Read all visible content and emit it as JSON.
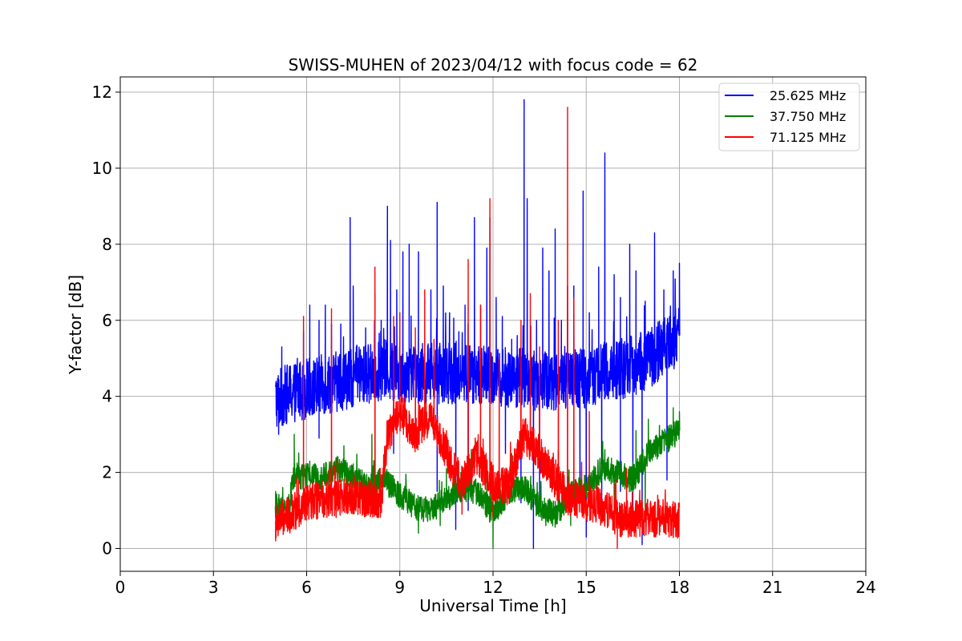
{
  "chart_data": {
    "type": "line",
    "title": "SWISS-MUHEN of 2023/04/12 with focus code = 62",
    "xlabel": "Universal Time [h]",
    "ylabel": "Y-factor [dB]",
    "xlim": [
      0,
      24
    ],
    "ylim": [
      -0.6,
      12.4
    ],
    "xticks": [
      0,
      3,
      6,
      9,
      12,
      15,
      18,
      21,
      24
    ],
    "xtick_labels": [
      "0",
      "3",
      "6",
      "9",
      "12",
      "15",
      "18",
      "21",
      "24"
    ],
    "yticks": [
      0,
      2,
      4,
      6,
      8,
      10,
      12
    ],
    "ytick_labels": [
      "0",
      "2",
      "4",
      "6",
      "8",
      "10",
      "12"
    ],
    "grid": true,
    "legend_position": "top-right",
    "series": [
      {
        "name": "25.625 MHz",
        "color": "#0000ff",
        "base": [
          [
            5.0,
            3.9
          ],
          [
            5.5,
            4.1
          ],
          [
            6.0,
            4.2
          ],
          [
            6.5,
            4.3
          ],
          [
            7.0,
            4.4
          ],
          [
            7.5,
            4.5
          ],
          [
            8.0,
            4.6
          ],
          [
            8.5,
            4.7
          ],
          [
            9.0,
            4.6
          ],
          [
            9.5,
            4.6
          ],
          [
            10.0,
            4.6
          ],
          [
            10.5,
            4.6
          ],
          [
            11.0,
            4.6
          ],
          [
            11.5,
            4.6
          ],
          [
            12.0,
            4.5
          ],
          [
            12.5,
            4.5
          ],
          [
            13.0,
            4.5
          ],
          [
            13.5,
            4.4
          ],
          [
            14.0,
            4.4
          ],
          [
            14.5,
            4.4
          ],
          [
            15.0,
            4.5
          ],
          [
            15.5,
            4.6
          ],
          [
            16.0,
            4.7
          ],
          [
            16.5,
            4.8
          ],
          [
            17.0,
            5.0
          ],
          [
            17.5,
            5.3
          ],
          [
            18.0,
            5.6
          ]
        ],
        "amplitude": 0.8,
        "peaks": [
          [
            5.2,
            5.3
          ],
          [
            5.7,
            5.0
          ],
          [
            5.9,
            5.7
          ],
          [
            6.1,
            6.4
          ],
          [
            6.4,
            6.0
          ],
          [
            6.6,
            6.4
          ],
          [
            6.8,
            5.9
          ],
          [
            7.1,
            5.9
          ],
          [
            7.4,
            8.7
          ],
          [
            7.5,
            6.9
          ],
          [
            7.9,
            5.8
          ],
          [
            8.2,
            6.7
          ],
          [
            8.4,
            6.0
          ],
          [
            8.6,
            9.0
          ],
          [
            8.7,
            8.1
          ],
          [
            8.9,
            6.8
          ],
          [
            9.1,
            7.8
          ],
          [
            9.3,
            8.0
          ],
          [
            9.6,
            7.8
          ],
          [
            9.8,
            5.2
          ],
          [
            10.0,
            6.8
          ],
          [
            10.2,
            9.1
          ],
          [
            10.4,
            6.9
          ],
          [
            10.6,
            6.2
          ],
          [
            10.9,
            5.7
          ],
          [
            11.1,
            6.4
          ],
          [
            11.4,
            8.7
          ],
          [
            11.6,
            6.4
          ],
          [
            11.8,
            7.9
          ],
          [
            11.9,
            8.7
          ],
          [
            12.1,
            6.6
          ],
          [
            12.3,
            6.1
          ],
          [
            12.6,
            5.5
          ],
          [
            13.0,
            11.8
          ],
          [
            13.1,
            9.2
          ],
          [
            13.4,
            6.0
          ],
          [
            13.6,
            7.9
          ],
          [
            13.8,
            7.3
          ],
          [
            14.0,
            8.4
          ],
          [
            14.2,
            6.0
          ],
          [
            14.4,
            6.9
          ],
          [
            14.6,
            6.9
          ],
          [
            14.9,
            9.4
          ],
          [
            15.1,
            6.2
          ],
          [
            15.4,
            7.4
          ],
          [
            15.6,
            10.4
          ],
          [
            15.9,
            7.2
          ],
          [
            16.1,
            6.6
          ],
          [
            16.4,
            8.0
          ],
          [
            16.6,
            7.3
          ],
          [
            16.9,
            6.5
          ],
          [
            17.2,
            8.3
          ],
          [
            17.5,
            6.8
          ],
          [
            17.8,
            7.3
          ],
          [
            18.0,
            7.5
          ]
        ],
        "dips": [
          [
            5.1,
            3.0
          ],
          [
            6.4,
            2.9
          ],
          [
            8.8,
            2.5
          ],
          [
            10.2,
            1.5
          ],
          [
            10.8,
            0.5
          ],
          [
            11.2,
            1.0
          ],
          [
            12.4,
            2.5
          ],
          [
            12.9,
            1.2
          ],
          [
            13.3,
            0.0
          ],
          [
            13.5,
            1.3
          ],
          [
            14.8,
            1.2
          ],
          [
            15.0,
            0.3
          ],
          [
            15.5,
            1.0
          ],
          [
            16.1,
            1.5
          ],
          [
            16.5,
            1.0
          ],
          [
            16.8,
            0.1
          ],
          [
            17.6,
            1.8
          ]
        ]
      },
      {
        "name": "37.750 MHz",
        "color": "#008000",
        "base": [
          [
            5.0,
            1.1
          ],
          [
            5.4,
            1.0
          ],
          [
            5.6,
            1.9
          ],
          [
            6.0,
            1.9
          ],
          [
            6.5,
            1.9
          ],
          [
            7.0,
            2.1
          ],
          [
            7.5,
            1.9
          ],
          [
            8.0,
            1.6
          ],
          [
            8.3,
            1.8
          ],
          [
            8.5,
            1.8
          ],
          [
            9.0,
            1.4
          ],
          [
            9.5,
            1.1
          ],
          [
            10.0,
            1.0
          ],
          [
            10.5,
            1.3
          ],
          [
            11.0,
            1.6
          ],
          [
            11.5,
            1.5
          ],
          [
            12.0,
            0.9
          ],
          [
            12.5,
            1.5
          ],
          [
            13.0,
            1.6
          ],
          [
            13.5,
            1.1
          ],
          [
            14.0,
            0.9
          ],
          [
            14.5,
            1.4
          ],
          [
            15.0,
            1.6
          ],
          [
            15.5,
            2.1
          ],
          [
            16.0,
            2.0
          ],
          [
            16.5,
            1.8
          ],
          [
            17.0,
            2.5
          ],
          [
            17.5,
            2.8
          ],
          [
            18.0,
            3.1
          ]
        ],
        "amplitude": 0.35,
        "peaks": [
          [
            5.0,
            1.5
          ],
          [
            5.6,
            3.0
          ],
          [
            6.1,
            2.3
          ],
          [
            7.2,
            2.7
          ],
          [
            8.1,
            3.0
          ],
          [
            10.5,
            2.1
          ],
          [
            11.3,
            2.6
          ],
          [
            11.8,
            2.3
          ],
          [
            12.6,
            2.5
          ],
          [
            14.1,
            2.6
          ],
          [
            15.6,
            2.6
          ],
          [
            16.6,
            3.1
          ],
          [
            17.0,
            3.4
          ],
          [
            17.8,
            3.7
          ],
          [
            18.0,
            3.6
          ]
        ],
        "dips": [
          [
            5.0,
            0.9
          ],
          [
            9.6,
            0.4
          ],
          [
            10.3,
            0.6
          ],
          [
            12.0,
            0.0
          ],
          [
            13.7,
            0.6
          ],
          [
            14.5,
            0.6
          ],
          [
            15.9,
            0.7
          ],
          [
            16.9,
            0.8
          ]
        ]
      },
      {
        "name": "71.125 MHz",
        "color": "#ff0000",
        "base": [
          [
            5.0,
            0.7
          ],
          [
            5.5,
            0.9
          ],
          [
            6.0,
            1.2
          ],
          [
            6.5,
            1.3
          ],
          [
            7.0,
            1.3
          ],
          [
            7.5,
            1.4
          ],
          [
            8.0,
            1.3
          ],
          [
            8.4,
            1.3
          ],
          [
            8.6,
            3.0
          ],
          [
            9.0,
            3.6
          ],
          [
            9.5,
            3.0
          ],
          [
            10.0,
            3.5
          ],
          [
            10.5,
            2.5
          ],
          [
            11.0,
            1.7
          ],
          [
            11.5,
            2.4
          ],
          [
            12.0,
            1.7
          ],
          [
            12.5,
            1.6
          ],
          [
            13.0,
            3.0
          ],
          [
            13.5,
            2.5
          ],
          [
            14.0,
            1.8
          ],
          [
            14.5,
            1.3
          ],
          [
            15.0,
            1.2
          ],
          [
            15.5,
            1.1
          ],
          [
            16.0,
            0.8
          ],
          [
            16.5,
            0.8
          ],
          [
            17.0,
            0.8
          ],
          [
            17.5,
            0.8
          ],
          [
            18.0,
            0.7
          ]
        ],
        "amplitude": 0.5,
        "peaks": [
          [
            5.9,
            6.1
          ],
          [
            6.8,
            6.3
          ],
          [
            8.2,
            7.4
          ],
          [
            8.8,
            6.1
          ],
          [
            9.0,
            6.2
          ],
          [
            9.5,
            5.8
          ],
          [
            9.8,
            6.8
          ],
          [
            10.1,
            5.5
          ],
          [
            10.5,
            3.1
          ],
          [
            11.2,
            7.6
          ],
          [
            11.6,
            6.4
          ],
          [
            11.9,
            9.2
          ],
          [
            12.2,
            5.0
          ],
          [
            12.9,
            6.0
          ],
          [
            13.2,
            6.7
          ],
          [
            13.5,
            5.3
          ],
          [
            14.1,
            6.0
          ],
          [
            14.4,
            11.6
          ],
          [
            14.6,
            6.6
          ],
          [
            15.1,
            3.6
          ],
          [
            16.3,
            2.1
          ],
          [
            17.3,
            1.4
          ]
        ],
        "dips": [
          [
            5.0,
            0.2
          ],
          [
            11.0,
            0.9
          ],
          [
            12.0,
            0.8
          ],
          [
            16.0,
            0.0
          ],
          [
            16.6,
            0.3
          ]
        ]
      }
    ]
  }
}
